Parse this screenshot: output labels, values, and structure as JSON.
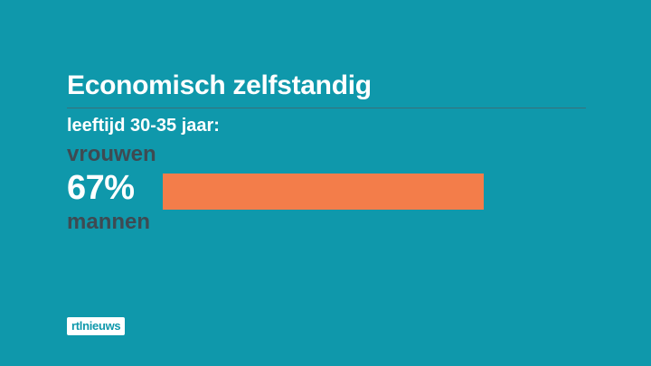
{
  "title": "Economisch zelfstandig",
  "subtitle": "leeftijd 30-35 jaar:",
  "chart_data": {
    "type": "bar",
    "title": "Economisch zelfstandig",
    "subtitle": "leeftijd 30-35 jaar:",
    "categories": [
      "vrouwen",
      "mannen"
    ],
    "values": [
      67,
      null
    ],
    "value_labels": [
      "67%",
      ""
    ],
    "unit": "%",
    "xlim": [
      0,
      100
    ],
    "grid": false,
    "legend": "none",
    "bar_color": "#f37d4a"
  },
  "colors": {
    "background": "#0f98ab",
    "bar": "#f37d4a",
    "category_text": "#3e4a52",
    "title_text": "#ffffff"
  },
  "logo": {
    "text": "rtlnieuws"
  }
}
